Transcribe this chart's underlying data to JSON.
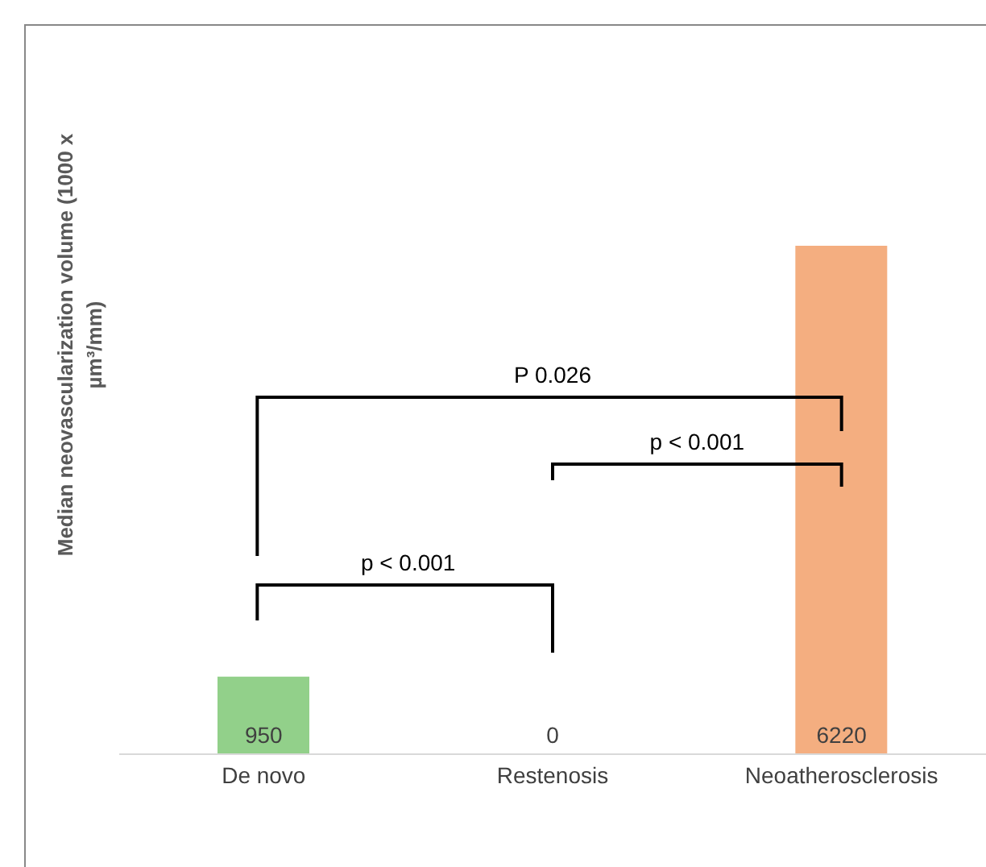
{
  "chart_data": {
    "type": "bar",
    "ylabel": "Median neovascularization volume (1000 x µm³/mm)",
    "categories": [
      "De novo",
      "Restenosis",
      "Neoatherosclerosis"
    ],
    "values": [
      950,
      0,
      6220
    ],
    "colors": [
      "#92d08a",
      "#f4ae80",
      "#f4ae80"
    ],
    "data_labels": true,
    "annotations": [
      "p < 0.001",
      "p < 0.001",
      "P 0.026"
    ]
  }
}
